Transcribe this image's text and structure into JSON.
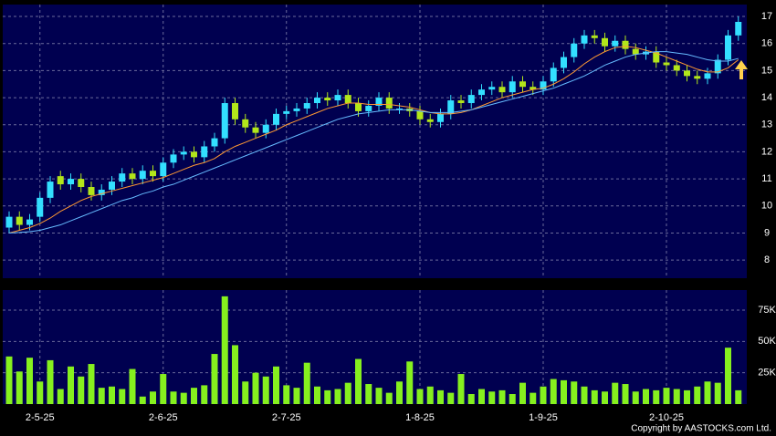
{
  "chart_data": [
    {
      "type": "candlestick",
      "up_color": "#33dfff",
      "down_color": "#b2e61a",
      "grid": true,
      "ylim": [
        7.33,
        17.44
      ],
      "yticks": [
        8,
        9,
        10,
        11,
        12,
        13,
        14,
        15,
        16,
        17
      ],
      "open": [
        9.2,
        9.6,
        9.3,
        9.6,
        10.3,
        11.1,
        10.8,
        11.0,
        10.7,
        10.4,
        10.6,
        10.9,
        11.2,
        11.0,
        11.3,
        11.1,
        11.6,
        11.9,
        12.0,
        11.8,
        12.2,
        12.5,
        13.8,
        13.2,
        12.9,
        12.7,
        13.0,
        13.4,
        13.5,
        13.6,
        13.8,
        14.0,
        13.9,
        14.1,
        13.8,
        13.5,
        13.7,
        14.0,
        13.6,
        13.6,
        13.5,
        13.2,
        13.1,
        13.4,
        13.9,
        13.8,
        14.1,
        14.3,
        14.4,
        14.2,
        14.6,
        14.4,
        14.3,
        14.6,
        15.1,
        15.5,
        16.0,
        16.3,
        16.2,
        15.9,
        16.1,
        15.8,
        15.6,
        15.7,
        15.3,
        15.2,
        15.0,
        14.8,
        14.7,
        14.9,
        15.4,
        16.3
      ],
      "high": [
        9.8,
        9.8,
        9.7,
        10.5,
        11.1,
        11.3,
        11.2,
        11.2,
        10.9,
        10.8,
        11.1,
        11.4,
        11.4,
        11.5,
        11.5,
        11.8,
        12.1,
        12.2,
        12.2,
        12.4,
        12.7,
        14.0,
        14.0,
        13.4,
        13.1,
        13.2,
        13.6,
        13.7,
        13.8,
        14.0,
        14.2,
        14.2,
        14.3,
        14.3,
        14.0,
        13.9,
        14.2,
        14.2,
        13.8,
        13.8,
        13.7,
        13.4,
        13.6,
        14.1,
        14.1,
        14.3,
        14.5,
        14.6,
        14.6,
        14.8,
        14.8,
        14.6,
        14.8,
        15.3,
        15.7,
        16.2,
        16.5,
        16.5,
        16.4,
        16.3,
        16.3,
        16.0,
        15.9,
        15.9,
        15.5,
        15.4,
        15.2,
        15.0,
        15.1,
        15.6,
        16.5,
        17.0
      ],
      "low": [
        9.0,
        9.1,
        9.1,
        9.4,
        10.1,
        10.6,
        10.6,
        10.5,
        10.2,
        10.2,
        10.4,
        10.7,
        10.8,
        10.8,
        10.9,
        10.9,
        11.4,
        11.7,
        11.6,
        11.6,
        12.0,
        12.3,
        13.0,
        12.7,
        12.5,
        12.5,
        12.8,
        13.2,
        13.3,
        13.4,
        13.6,
        13.7,
        13.7,
        13.6,
        13.3,
        13.3,
        13.5,
        13.4,
        13.4,
        13.3,
        13.0,
        12.9,
        12.9,
        13.2,
        13.6,
        13.6,
        13.9,
        14.1,
        14.0,
        14.0,
        14.2,
        14.1,
        14.1,
        14.4,
        14.9,
        15.3,
        15.8,
        16.0,
        15.7,
        15.7,
        15.6,
        15.4,
        15.4,
        15.1,
        15.0,
        14.8,
        14.6,
        14.5,
        14.5,
        14.7,
        15.2,
        16.1
      ],
      "close": [
        9.6,
        9.3,
        9.5,
        10.3,
        10.9,
        10.8,
        11.0,
        10.7,
        10.4,
        10.6,
        10.9,
        11.2,
        11.0,
        11.3,
        11.1,
        11.6,
        11.9,
        12.0,
        11.8,
        12.2,
        12.5,
        13.8,
        13.2,
        12.9,
        12.7,
        13.0,
        13.4,
        13.5,
        13.6,
        13.8,
        14.0,
        13.9,
        14.1,
        13.8,
        13.5,
        13.7,
        14.0,
        13.6,
        13.6,
        13.5,
        13.2,
        13.1,
        13.4,
        13.9,
        13.8,
        14.1,
        14.3,
        14.4,
        14.2,
        14.6,
        14.4,
        14.3,
        14.6,
        15.1,
        15.5,
        16.0,
        16.3,
        16.2,
        15.9,
        16.1,
        15.8,
        15.6,
        15.7,
        15.3,
        15.2,
        15.0,
        14.8,
        14.7,
        14.9,
        15.4,
        16.3,
        16.8
      ],
      "series": [
        {
          "color": "#ff9933",
          "values": [
            9.0,
            9.1,
            9.2,
            9.35,
            9.55,
            9.8,
            10.0,
            10.2,
            10.35,
            10.45,
            10.55,
            10.65,
            10.75,
            10.85,
            10.95,
            11.05,
            11.2,
            11.35,
            11.5,
            11.6,
            11.75,
            12.0,
            12.2,
            12.35,
            12.5,
            12.65,
            12.8,
            13.0,
            13.15,
            13.3,
            13.45,
            13.6,
            13.7,
            13.8,
            13.8,
            13.75,
            13.75,
            13.75,
            13.7,
            13.65,
            13.55,
            13.45,
            13.4,
            13.4,
            13.45,
            13.55,
            13.7,
            13.85,
            14.0,
            14.1,
            14.2,
            14.3,
            14.35,
            14.5,
            14.7,
            14.95,
            15.25,
            15.5,
            15.7,
            15.85,
            15.9,
            15.85,
            15.75,
            15.65,
            15.5,
            15.35,
            15.2,
            15.05,
            14.95,
            14.95,
            15.1,
            15.4
          ]
        },
        {
          "color": "#66bbff",
          "values": [
            9.0,
            9.02,
            9.05,
            9.1,
            9.2,
            9.3,
            9.45,
            9.6,
            9.75,
            9.9,
            10.05,
            10.2,
            10.3,
            10.45,
            10.55,
            10.7,
            10.8,
            10.95,
            11.1,
            11.25,
            11.4,
            11.55,
            11.7,
            11.85,
            12.0,
            12.15,
            12.3,
            12.45,
            12.6,
            12.75,
            12.9,
            13.05,
            13.2,
            13.3,
            13.4,
            13.45,
            13.5,
            13.55,
            13.55,
            13.55,
            13.5,
            13.45,
            13.45,
            13.45,
            13.5,
            13.55,
            13.65,
            13.75,
            13.85,
            13.95,
            14.05,
            14.15,
            14.25,
            14.35,
            14.5,
            14.65,
            14.8,
            15.0,
            15.2,
            15.35,
            15.5,
            15.6,
            15.65,
            15.7,
            15.7,
            15.65,
            15.6,
            15.5,
            15.4,
            15.35,
            15.35,
            15.45
          ]
        }
      ]
    },
    {
      "type": "bar",
      "color": "#86f01e",
      "grid": true,
      "ylim": [
        0,
        91000
      ],
      "yticks": [
        {
          "value": 25000,
          "label": "25K"
        },
        {
          "value": 50000,
          "label": "50K"
        },
        {
          "value": 75000,
          "label": "75K"
        }
      ],
      "categories": [
        null,
        null,
        null,
        "2-5-25",
        null,
        null,
        null,
        null,
        null,
        null,
        null,
        null,
        null,
        null,
        null,
        "2-6-25",
        null,
        null,
        null,
        null,
        null,
        null,
        null,
        null,
        null,
        null,
        null,
        "2-7-25",
        null,
        null,
        null,
        null,
        null,
        null,
        null,
        null,
        null,
        null,
        null,
        null,
        "1-8-25",
        null,
        null,
        null,
        null,
        null,
        null,
        null,
        null,
        null,
        null,
        null,
        "1-9-25",
        null,
        null,
        null,
        null,
        null,
        null,
        null,
        null,
        null,
        null,
        null,
        "2-10-25",
        null,
        null,
        null,
        null,
        null,
        null,
        null
      ],
      "values": [
        38000,
        26000,
        37000,
        18000,
        35000,
        12000,
        30000,
        22000,
        32000,
        13000,
        14000,
        12000,
        28000,
        6000,
        10000,
        24000,
        10000,
        9000,
        13000,
        15000,
        40000,
        86000,
        47000,
        18000,
        25000,
        22000,
        30000,
        15000,
        13000,
        33000,
        14000,
        11000,
        12000,
        17000,
        36000,
        16000,
        13000,
        9000,
        18000,
        34000,
        12000,
        14000,
        11000,
        9000,
        24000,
        8000,
        12000,
        10000,
        11000,
        8000,
        17000,
        9000,
        14000,
        20000,
        19000,
        18000,
        14000,
        11000,
        10000,
        17000,
        16000,
        10000,
        12000,
        11000,
        13000,
        12000,
        11000,
        14000,
        18000,
        17000,
        45000,
        11000
      ]
    }
  ],
  "copyright": "Copyright by AASTOCKS.com Ltd."
}
